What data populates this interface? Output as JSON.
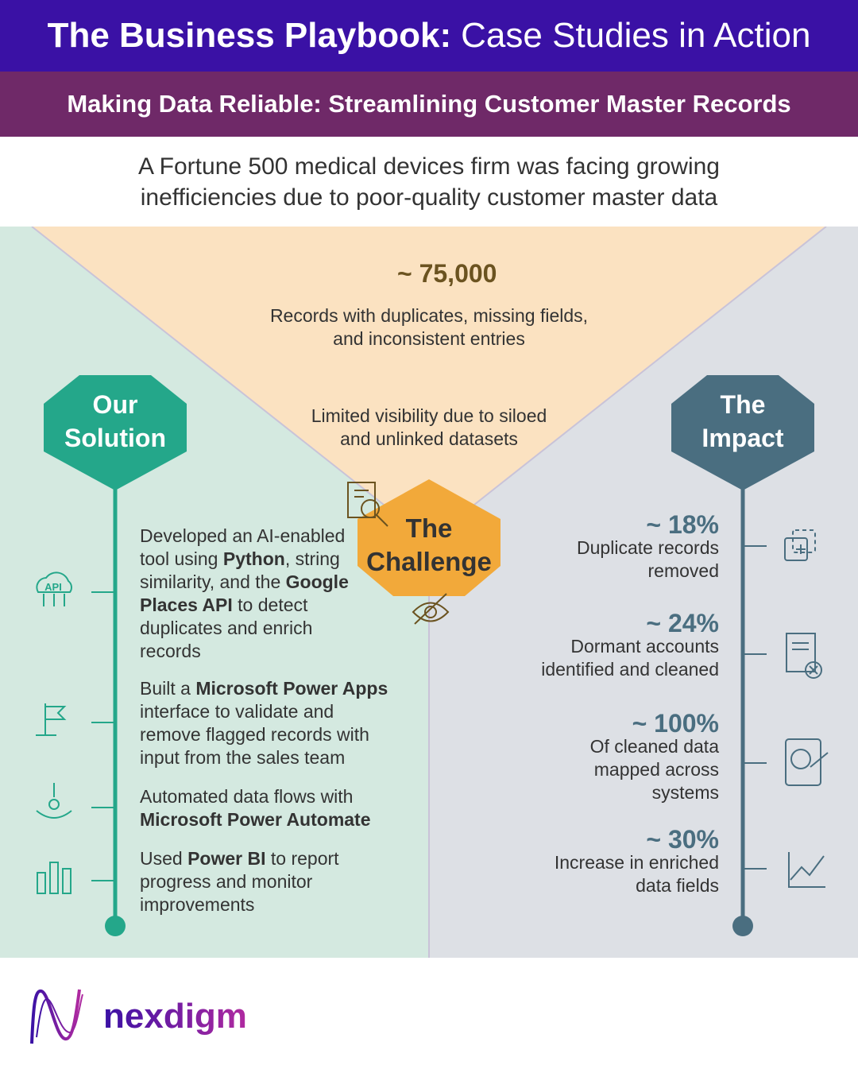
{
  "header": {
    "title_bold": "The Business Playbook:",
    "title_rest": "Case Studies in Action"
  },
  "subheader": "Making Data Reliable: Streamlining Customer Master Records",
  "intro": "A Fortune 500 medical devices firm was facing growing inefficiencies due to poor-quality customer master data",
  "challenge": {
    "title": "The Challenge",
    "stat": "~ 75,000",
    "stat_text": "Records with duplicates, missing fields, and inconsistent entries",
    "visibility_text": "Limited visibility due to siloed and unlinked datasets"
  },
  "solution": {
    "title": "Our Solution",
    "icon_label": "API",
    "items": [
      {
        "segments": [
          {
            "text": "Developed an AI-enabled tool using ",
            "bold": false
          },
          {
            "text": "Python",
            "bold": true
          },
          {
            "text": ", string similarity, and the ",
            "bold": false
          },
          {
            "text": "Google Places API",
            "bold": true
          },
          {
            "text": " to detect duplicates and enrich records",
            "bold": false
          }
        ]
      },
      {
        "segments": [
          {
            "text": "Built a ",
            "bold": false
          },
          {
            "text": "Microsoft Power Apps",
            "bold": true
          },
          {
            "text": " interface to validate and remove flagged records with input from the sales team",
            "bold": false
          }
        ]
      },
      {
        "segments": [
          {
            "text": "Automated data flows with ",
            "bold": false
          },
          {
            "text": "Microsoft Power Automate",
            "bold": true
          }
        ]
      },
      {
        "segments": [
          {
            "text": "Used ",
            "bold": false
          },
          {
            "text": "Power BI",
            "bold": true
          },
          {
            "text": " to report progress and monitor improvements",
            "bold": false
          }
        ]
      }
    ]
  },
  "impact": {
    "title": "The Impact",
    "items": [
      {
        "stat": "~ 18%",
        "text": "Duplicate records removed"
      },
      {
        "stat": "~ 24%",
        "text": "Dormant accounts identified and cleaned"
      },
      {
        "stat": "~ 100%",
        "text": "Of cleaned data mapped across systems"
      },
      {
        "stat": "~ 30%",
        "text": "Increase in enriched data fields"
      }
    ]
  },
  "footer": {
    "logo": "nexdigm"
  }
}
